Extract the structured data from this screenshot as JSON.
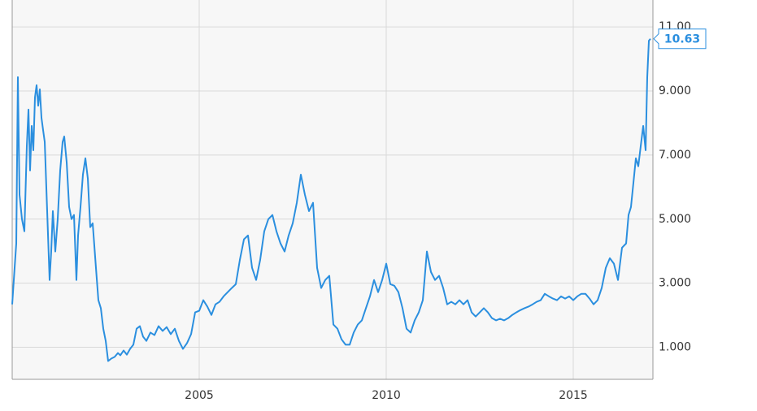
{
  "chart_data": {
    "type": "line",
    "x": [
      2000,
      2000.065,
      2000.109,
      2000.152,
      2000.196,
      2000.261,
      2000.326,
      2000.391,
      2000.435,
      2000.478,
      2000.522,
      2000.565,
      2000.609,
      2000.652,
      2000.696,
      2000.739,
      2000.783,
      2000.826,
      2000.87,
      2000.935,
      2001.0,
      2001.043,
      2001.087,
      2001.152,
      2001.217,
      2001.283,
      2001.348,
      2001.391,
      2001.457,
      2001.522,
      2001.587,
      2001.652,
      2001.717,
      2001.761,
      2001.826,
      2001.891,
      2001.957,
      2002.022,
      2002.087,
      2002.152,
      2002.239,
      2002.304,
      2002.37,
      2002.435,
      2002.5,
      2002.565,
      2002.652,
      2002.739,
      2002.826,
      2002.891,
      2002.978,
      2003.065,
      2003.152,
      2003.239,
      2003.326,
      2003.413,
      2003.5,
      2003.587,
      2003.696,
      2003.804,
      2003.913,
      2004.022,
      2004.13,
      2004.239,
      2004.348,
      2004.457,
      2004.565,
      2004.674,
      2004.783,
      2004.891,
      2005.0,
      2005.109,
      2005.217,
      2005.326,
      2005.435,
      2005.543,
      2005.652,
      2005.761,
      2005.87,
      2005.978,
      2006.087,
      2006.196,
      2006.304,
      2006.413,
      2006.522,
      2006.63,
      2006.739,
      2006.848,
      2006.957,
      2007.065,
      2007.174,
      2007.283,
      2007.391,
      2007.5,
      2007.609,
      2007.717,
      2007.826,
      2007.935,
      2008.043,
      2008.152,
      2008.261,
      2008.37,
      2008.478,
      2008.587,
      2008.696,
      2008.804,
      2008.913,
      2009.022,
      2009.13,
      2009.239,
      2009.348,
      2009.457,
      2009.565,
      2009.674,
      2009.783,
      2009.891,
      2010.0,
      2010.109,
      2010.217,
      2010.326,
      2010.435,
      2010.543,
      2010.652,
      2010.761,
      2010.87,
      2010.978,
      2011.087,
      2011.196,
      2011.304,
      2011.413,
      2011.522,
      2011.63,
      2011.739,
      2011.848,
      2011.957,
      2012.065,
      2012.174,
      2012.283,
      2012.391,
      2012.5,
      2012.609,
      2012.717,
      2012.826,
      2012.935,
      2013.043,
      2013.152,
      2013.261,
      2013.37,
      2013.478,
      2013.587,
      2013.696,
      2013.804,
      2013.913,
      2014.022,
      2014.13,
      2014.239,
      2014.348,
      2014.457,
      2014.565,
      2014.674,
      2014.783,
      2014.891,
      2015.0,
      2015.109,
      2015.217,
      2015.326,
      2015.435,
      2015.543,
      2015.652,
      2015.761,
      2015.87,
      2015.978,
      2016.087,
      2016.196,
      2016.304,
      2016.413,
      2016.478,
      2016.543,
      2016.609,
      2016.674,
      2016.739,
      2016.804,
      2016.87,
      2016.935,
      2016.978,
      2017.022,
      2017.065
    ],
    "series": [
      {
        "color": "#2b8fdf",
        "values": [
          2.34,
          3.48,
          4.24,
          9.43,
          5.76,
          5.0,
          4.62,
          7.28,
          8.42,
          6.52,
          7.91,
          7.15,
          8.8,
          9.18,
          8.54,
          9.05,
          8.16,
          7.78,
          7.41,
          5.25,
          3.1,
          3.99,
          5.25,
          3.99,
          5.0,
          6.52,
          7.41,
          7.58,
          6.77,
          5.38,
          5.0,
          5.13,
          3.1,
          4.49,
          5.38,
          6.39,
          6.9,
          6.27,
          4.75,
          4.87,
          3.48,
          2.47,
          2.22,
          1.58,
          1.2,
          0.57,
          0.65,
          0.7,
          0.82,
          0.75,
          0.9,
          0.77,
          0.95,
          1.08,
          1.58,
          1.66,
          1.33,
          1.2,
          1.46,
          1.38,
          1.66,
          1.51,
          1.63,
          1.41,
          1.58,
          1.2,
          0.95,
          1.13,
          1.41,
          2.09,
          2.14,
          2.47,
          2.27,
          2.01,
          2.34,
          2.42,
          2.59,
          2.72,
          2.85,
          2.97,
          3.73,
          4.37,
          4.49,
          3.48,
          3.1,
          3.73,
          4.62,
          5.0,
          5.13,
          4.62,
          4.24,
          3.99,
          4.49,
          4.87,
          5.51,
          6.39,
          5.76,
          5.25,
          5.51,
          3.48,
          2.85,
          3.1,
          3.23,
          1.71,
          1.58,
          1.25,
          1.08,
          1.08,
          1.46,
          1.71,
          1.84,
          2.22,
          2.59,
          3.1,
          2.72,
          3.1,
          3.61,
          2.97,
          2.92,
          2.72,
          2.22,
          1.58,
          1.46,
          1.84,
          2.09,
          2.47,
          3.99,
          3.35,
          3.1,
          3.23,
          2.85,
          2.34,
          2.42,
          2.34,
          2.47,
          2.34,
          2.47,
          2.09,
          1.96,
          2.09,
          2.22,
          2.09,
          1.91,
          1.84,
          1.89,
          1.84,
          1.91,
          2.01,
          2.09,
          2.16,
          2.22,
          2.27,
          2.34,
          2.42,
          2.47,
          2.67,
          2.59,
          2.52,
          2.47,
          2.59,
          2.52,
          2.59,
          2.47,
          2.59,
          2.67,
          2.67,
          2.52,
          2.34,
          2.47,
          2.85,
          3.48,
          3.78,
          3.61,
          3.1,
          4.11,
          4.24,
          5.13,
          5.38,
          6.14,
          6.9,
          6.65,
          7.28,
          7.91,
          7.15,
          9.43,
          10.57,
          10.63
        ]
      }
    ],
    "last_value": 10.63,
    "xlim": [
      2000,
      2017.13
    ],
    "xticks": [
      2005,
      2010,
      2015
    ],
    "ylim": [
      0,
      11.84
    ],
    "yticks": [
      {
        "value": 1,
        "label": "1.000"
      },
      {
        "value": 3,
        "label": "3.000"
      },
      {
        "value": 5,
        "label": "5.000"
      },
      {
        "value": 7,
        "label": "7.000"
      },
      {
        "value": 9,
        "label": "9.000"
      },
      {
        "value": 11,
        "label": "11.00"
      }
    ],
    "grid": true
  }
}
